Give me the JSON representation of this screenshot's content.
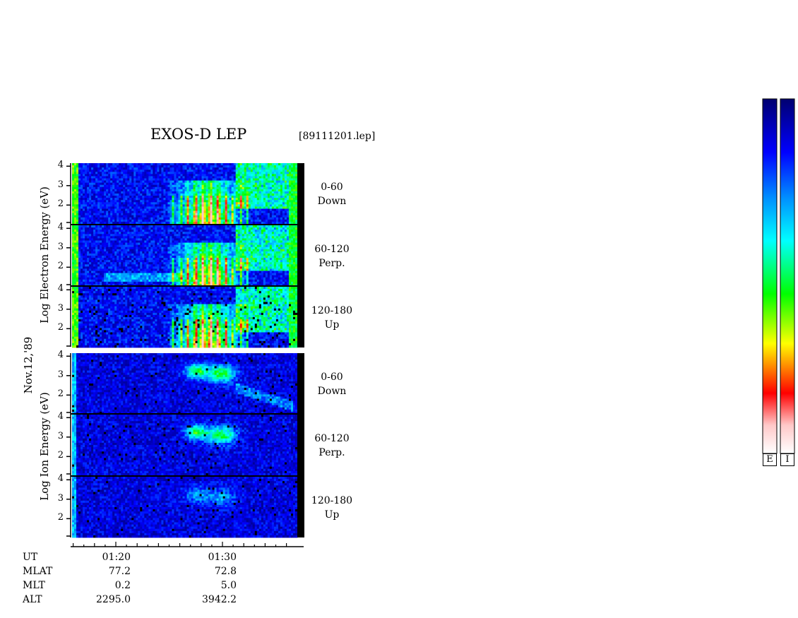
{
  "chart_data": {
    "type": "heatmap",
    "title": "EXOS-D LEP",
    "file_label": "[89111201.lep]",
    "date_label": "Nov.12,'89",
    "electron_axis_title": "Log  Electron  Energy (eV)",
    "ion_axis_title": "Log  Ion  Energy (eV)",
    "y_ticks": [
      "4",
      "3",
      "2"
    ],
    "panels": [
      {
        "species": "electron",
        "pitch_range": "0-60",
        "direction": "Down"
      },
      {
        "species": "electron",
        "pitch_range": "60-120",
        "direction": "Perp."
      },
      {
        "species": "electron",
        "pitch_range": "120-180",
        "direction": "Up"
      },
      {
        "species": "ion",
        "pitch_range": "0-60",
        "direction": "Down"
      },
      {
        "species": "ion",
        "pitch_range": "60-120",
        "direction": "Perp."
      },
      {
        "species": "ion",
        "pitch_range": "120-180",
        "direction": "Up"
      }
    ],
    "x_axis": {
      "tick_labels": [
        "01:20",
        "01:30"
      ],
      "rows": [
        {
          "label": "UT",
          "values": [
            "01:20",
            "01:30"
          ]
        },
        {
          "label": "MLAT",
          "values": [
            "77.2",
            "72.8"
          ]
        },
        {
          "label": "MLT",
          "values": [
            "0.2",
            "5.0"
          ]
        },
        {
          "label": "ALT",
          "values": [
            "2295.0",
            "3942.2"
          ]
        }
      ]
    },
    "colorbars": [
      {
        "label": "E"
      },
      {
        "label": "I"
      }
    ],
    "colormap": [
      "#ffffff",
      "#ffd0d0",
      "#ff0000",
      "#ff8000",
      "#ffff00",
      "#00ff00",
      "#00ffff",
      "#0080ff",
      "#0000ff",
      "#000080"
    ]
  }
}
